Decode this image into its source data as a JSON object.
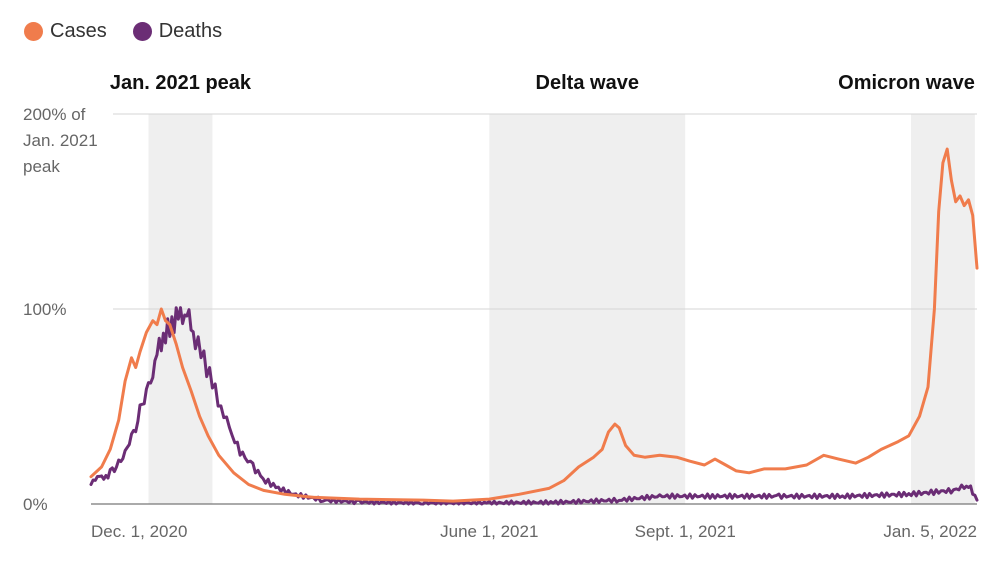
{
  "legend": {
    "items": [
      {
        "label": "Cases",
        "color": "#f07c4c"
      },
      {
        "label": "Deaths",
        "color": "#6b2d75"
      }
    ]
  },
  "chart_data": {
    "type": "line",
    "x_start": "2020-11-26",
    "x_end": "2022-01-16",
    "y_unit": "% of Jan. 2021 peak",
    "ylim": [
      0,
      200
    ],
    "y_ticks": [
      {
        "value": 0,
        "label": "0%"
      },
      {
        "value": 100,
        "label": "100%"
      },
      {
        "value": 200,
        "label": "200% of Jan. 2021 peak",
        "lines": [
          "200% of",
          "Jan. 2021",
          "peak"
        ]
      }
    ],
    "x_ticks": [
      {
        "date": "2020-12-01",
        "label": "Dec. 1, 2020"
      },
      {
        "date": "2021-06-01",
        "label": "June 1, 2021"
      },
      {
        "date": "2021-09-01",
        "label": "Sept. 1, 2021"
      },
      {
        "date": "2022-01-05",
        "label": "Jan. 5, 2022"
      }
    ],
    "grid": true,
    "legend_position": "top-left",
    "bands": [
      {
        "label": "Jan. 2021 peak",
        "start": "2020-12-23",
        "end": "2021-01-22",
        "label_anchor": "middle"
      },
      {
        "label": "Delta wave",
        "start": "2021-06-01",
        "end": "2021-09-01",
        "label_anchor": "middle"
      },
      {
        "label": "Omicron wave",
        "start": "2021-12-16",
        "end": "2022-01-15",
        "label_anchor": "end"
      }
    ],
    "series": [
      {
        "name": "Cases",
        "color": "#f07c4c",
        "points": [
          [
            "2020-11-26",
            14
          ],
          [
            "2020-12-01",
            19
          ],
          [
            "2020-12-05",
            28
          ],
          [
            "2020-12-09",
            43
          ],
          [
            "2020-12-12",
            63
          ],
          [
            "2020-12-15",
            75
          ],
          [
            "2020-12-17",
            70
          ],
          [
            "2020-12-19",
            78
          ],
          [
            "2020-12-22",
            88
          ],
          [
            "2020-12-25",
            94
          ],
          [
            "2020-12-27",
            92
          ],
          [
            "2020-12-29",
            100
          ],
          [
            "2020-12-31",
            94
          ],
          [
            "2021-01-02",
            92
          ],
          [
            "2021-01-05",
            82
          ],
          [
            "2021-01-08",
            70
          ],
          [
            "2021-01-12",
            58
          ],
          [
            "2021-01-16",
            45
          ],
          [
            "2021-01-20",
            35
          ],
          [
            "2021-01-25",
            25
          ],
          [
            "2021-02-01",
            16
          ],
          [
            "2021-02-08",
            10
          ],
          [
            "2021-02-15",
            7
          ],
          [
            "2021-02-25",
            5
          ],
          [
            "2021-03-10",
            3.5
          ],
          [
            "2021-04-01",
            2.5
          ],
          [
            "2021-05-01",
            2
          ],
          [
            "2021-05-15",
            1.5
          ],
          [
            "2021-06-01",
            2.5
          ],
          [
            "2021-06-15",
            5
          ],
          [
            "2021-06-29",
            8
          ],
          [
            "2021-07-06",
            12
          ],
          [
            "2021-07-13",
            19
          ],
          [
            "2021-07-20",
            24
          ],
          [
            "2021-07-24",
            28
          ],
          [
            "2021-07-27",
            37
          ],
          [
            "2021-07-30",
            41
          ],
          [
            "2021-08-01",
            39
          ],
          [
            "2021-08-04",
            30
          ],
          [
            "2021-08-08",
            25
          ],
          [
            "2021-08-13",
            24
          ],
          [
            "2021-08-20",
            25
          ],
          [
            "2021-08-28",
            24
          ],
          [
            "2021-09-03",
            22
          ],
          [
            "2021-09-10",
            20
          ],
          [
            "2021-09-15",
            23
          ],
          [
            "2021-09-20",
            20
          ],
          [
            "2021-09-25",
            17
          ],
          [
            "2021-10-01",
            16
          ],
          [
            "2021-10-08",
            18
          ],
          [
            "2021-10-18",
            18
          ],
          [
            "2021-10-28",
            20
          ],
          [
            "2021-11-05",
            25
          ],
          [
            "2021-11-12",
            23
          ],
          [
            "2021-11-20",
            21
          ],
          [
            "2021-11-26",
            24
          ],
          [
            "2021-12-02",
            28
          ],
          [
            "2021-12-10",
            32
          ],
          [
            "2021-12-15",
            35
          ],
          [
            "2021-12-20",
            45
          ],
          [
            "2021-12-24",
            60
          ],
          [
            "2021-12-27",
            100
          ],
          [
            "2021-12-29",
            150
          ],
          [
            "2021-12-31",
            175
          ],
          [
            "2022-01-02",
            182
          ],
          [
            "2022-01-04",
            166
          ],
          [
            "2022-01-06",
            155
          ],
          [
            "2022-01-08",
            158
          ],
          [
            "2022-01-10",
            153
          ],
          [
            "2022-01-12",
            156
          ],
          [
            "2022-01-14",
            148
          ],
          [
            "2022-01-16",
            121
          ]
        ]
      },
      {
        "name": "Deaths",
        "color": "#6b2d75",
        "points": [
          [
            "2020-11-26",
            10
          ],
          [
            "2020-11-29",
            15
          ],
          [
            "2020-12-01",
            13
          ],
          [
            "2020-12-04",
            15
          ],
          [
            "2020-12-06",
            17
          ],
          [
            "2020-12-08",
            20
          ],
          [
            "2020-12-10",
            22
          ],
          [
            "2020-12-12",
            26
          ],
          [
            "2020-12-14",
            33
          ],
          [
            "2020-12-16",
            35
          ],
          [
            "2020-12-18",
            45
          ],
          [
            "2020-12-20",
            50
          ],
          [
            "2020-12-22",
            58
          ],
          [
            "2020-12-25",
            68
          ],
          [
            "2020-12-28",
            80
          ],
          [
            "2020-12-31",
            88
          ],
          [
            "2021-01-03",
            92
          ],
          [
            "2021-01-06",
            96
          ],
          [
            "2021-01-09",
            99
          ],
          [
            "2021-01-11",
            95
          ],
          [
            "2021-01-14",
            85
          ],
          [
            "2021-01-18",
            74
          ],
          [
            "2021-01-22",
            62
          ],
          [
            "2021-01-26",
            50
          ],
          [
            "2021-01-30",
            38
          ],
          [
            "2021-02-04",
            27
          ],
          [
            "2021-02-10",
            19
          ],
          [
            "2021-02-16",
            12
          ],
          [
            "2021-02-22",
            8
          ],
          [
            "2021-03-01",
            5
          ],
          [
            "2021-03-15",
            2
          ],
          [
            "2021-04-01",
            1
          ],
          [
            "2021-05-01",
            0.5
          ],
          [
            "2021-06-01",
            0.5
          ],
          [
            "2021-07-01",
            0.8
          ],
          [
            "2021-08-01",
            2
          ],
          [
            "2021-08-20",
            4
          ],
          [
            "2021-09-15",
            4
          ],
          [
            "2021-10-15",
            4
          ],
          [
            "2021-11-15",
            4
          ],
          [
            "2021-12-15",
            5
          ],
          [
            "2022-01-05",
            7
          ],
          [
            "2022-01-10",
            9
          ],
          [
            "2022-01-13",
            8
          ],
          [
            "2022-01-16",
            2
          ]
        ]
      }
    ]
  }
}
